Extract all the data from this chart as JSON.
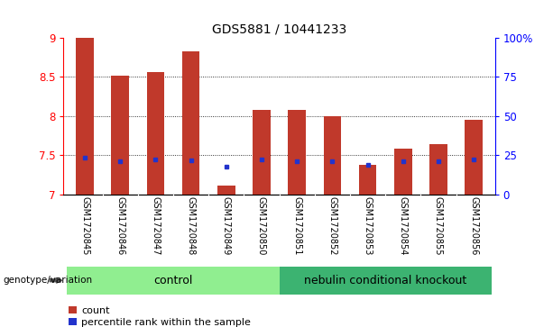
{
  "title": "GDS5881 / 10441233",
  "samples": [
    "GSM1720845",
    "GSM1720846",
    "GSM1720847",
    "GSM1720848",
    "GSM1720849",
    "GSM1720850",
    "GSM1720851",
    "GSM1720852",
    "GSM1720853",
    "GSM1720854",
    "GSM1720855",
    "GSM1720856"
  ],
  "bar_values": [
    9.0,
    8.51,
    8.56,
    8.82,
    7.12,
    8.08,
    8.08,
    8.0,
    7.38,
    7.59,
    7.64,
    7.95
  ],
  "percentile_values": [
    7.47,
    7.43,
    7.45,
    7.44,
    7.36,
    7.45,
    7.43,
    7.43,
    7.38,
    7.43,
    7.43,
    7.45
  ],
  "bar_color": "#c0392b",
  "percentile_color": "#2233cc",
  "ymin": 7.0,
  "ymax": 9.0,
  "yticks": [
    7.0,
    7.5,
    8.0,
    8.5,
    9.0
  ],
  "ytick_labels": [
    "7",
    "7.5",
    "8",
    "8.5",
    "9"
  ],
  "right_yticks_pct": [
    0,
    25,
    50,
    75,
    100
  ],
  "right_ytick_labels": [
    "0",
    "25",
    "50",
    "75",
    "100%"
  ],
  "grid_values": [
    7.5,
    8.0,
    8.5
  ],
  "group_control_count": 6,
  "group_ko_count": 6,
  "group_control_label": "control",
  "group_ko_label": "nebulin conditional knockout",
  "genotype_label": "genotype/variation",
  "legend_count_label": "count",
  "legend_percentile_label": "percentile rank within the sample",
  "bar_width": 0.5,
  "control_bg": "#90EE90",
  "ko_bg": "#3CB371",
  "tick_area_bg": "#c8c8c8",
  "title_fontsize": 10,
  "axis_fontsize": 8.5,
  "tick_label_fontsize": 7
}
